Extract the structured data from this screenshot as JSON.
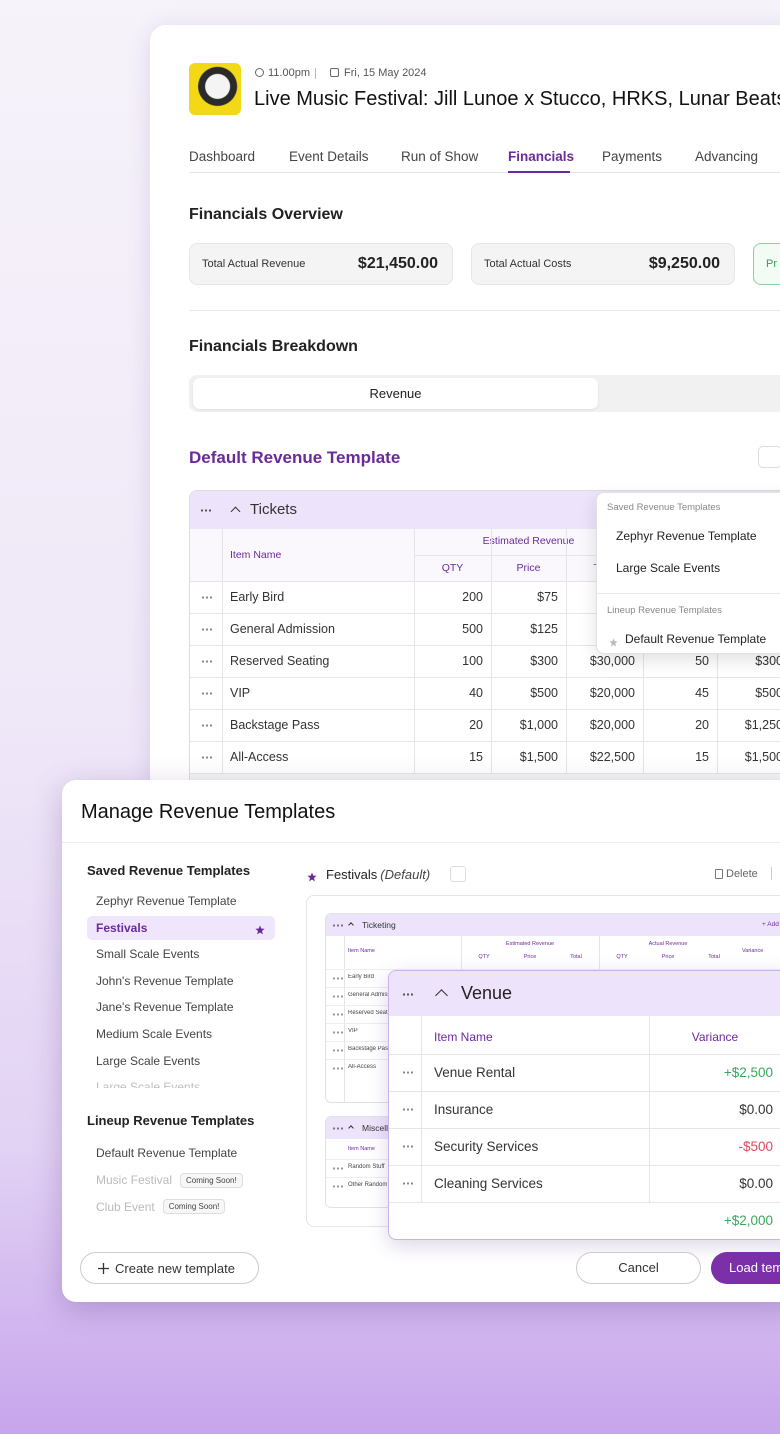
{
  "header": {
    "time": "11.00pm",
    "date": "Fri, 15 May 2024",
    "title": "Live Music Festival: Jill Lunoe x Stucco, HRKS, Lunar Beats"
  },
  "tabs": {
    "items": [
      "Dashboard",
      "Event Details",
      "Run of Show",
      "Financials",
      "Payments",
      "Advancing"
    ],
    "active": 3
  },
  "overview": {
    "title": "Financials Overview",
    "cards": [
      {
        "label": "Total Actual Revenue",
        "value": "$21,450.00"
      },
      {
        "label": "Total Actual Costs",
        "value": "$9,250.00"
      },
      {
        "label": "Pr"
      }
    ]
  },
  "breakdown": {
    "title": "Financials Breakdown",
    "toggle": [
      "Revenue"
    ]
  },
  "template": {
    "title": "Default Revenue Template",
    "section": "Tickets",
    "headers": {
      "item": "Item Name",
      "estimated": "Estimated Revenue",
      "qty": "QTY",
      "price": "Price",
      "total": "Total"
    },
    "rows": [
      [
        "Early Bird",
        200,
        "$75"
      ],
      [
        "General Admission",
        500,
        "$125"
      ],
      [
        "Reserved Seating",
        100,
        "$300",
        "$30,000",
        50,
        "$300"
      ],
      [
        "VIP",
        40,
        "$500",
        "$20,000",
        45,
        "$500"
      ],
      [
        "Backstage Pass",
        20,
        "$1,000",
        "$20,000",
        20,
        "$1,250"
      ],
      [
        "All-Access",
        15,
        "$1,500",
        "$22,500",
        15,
        "$1,500"
      ]
    ]
  },
  "dropdown": {
    "saved_heading": "Saved Revenue Templates",
    "saved": [
      "Zephyr Revenue Template",
      "Large Scale Events"
    ],
    "lineup_heading": "Lineup Revenue Templates",
    "lineup": [
      "Default Revenue Template"
    ]
  },
  "modal": {
    "title": "Manage Revenue Templates",
    "saved_heading": "Saved Revenue Templates",
    "saved": [
      "Zephyr Revenue Template",
      "Festivals",
      "Small Scale Events",
      "John's Revenue Template",
      "Jane's Revenue Template",
      "Medium Scale Events",
      "Large Scale Events",
      "Large Scale Events"
    ],
    "lineup_heading": "Lineup Revenue Templates",
    "lineup": [
      {
        "name": "Default Revenue Template"
      },
      {
        "name": "Music Festival",
        "badge": "Coming Soon!"
      },
      {
        "name": "Club Event",
        "badge": "Coming Soon!"
      }
    ],
    "create": "Create new template",
    "selected": {
      "name": "Festivals",
      "tag": "(Default)"
    },
    "delete": "Delete",
    "preview": {
      "section": "Ticketing",
      "add": "+ Add",
      "item": "Item Name",
      "groups": [
        "Estimated Revenue",
        "Actual Revenue"
      ],
      "sub": [
        "QTY",
        "Price",
        "Total"
      ],
      "variance": "Variance",
      "rows": [
        "Early Bird",
        "General Admission",
        "Reserved Seating",
        "VIP",
        "Backstage Pass",
        "All-Access"
      ],
      "section2": "Miscellaneous",
      "rows2": [
        "Random Stuff",
        "Other Random"
      ]
    },
    "venue": {
      "title": "Venue",
      "item": "Item Name",
      "variance": "Variance",
      "rows": [
        [
          "Venue Rental",
          "+$2,500"
        ],
        [
          "Insurance",
          "$0.00"
        ],
        [
          "Security Services",
          "-$500"
        ],
        [
          "Cleaning Services",
          "$0.00"
        ]
      ],
      "total": "+$2,000"
    },
    "cancel": "Cancel",
    "load": "Load template"
  }
}
